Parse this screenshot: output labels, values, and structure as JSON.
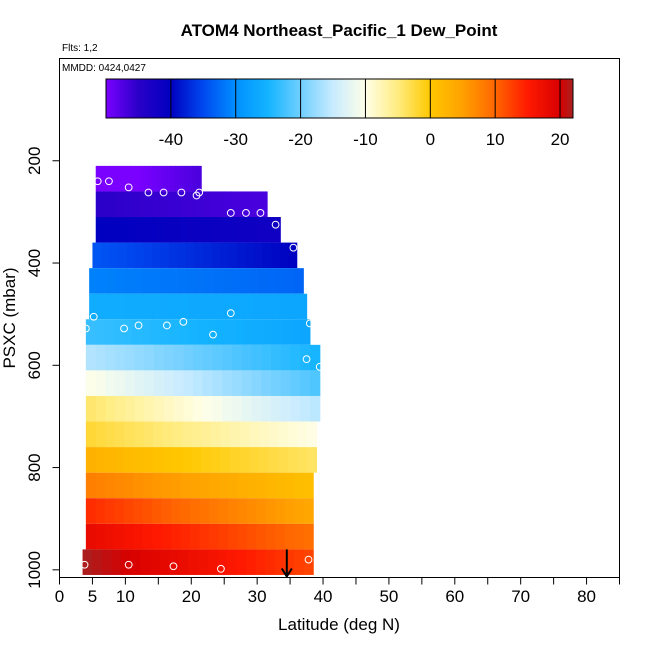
{
  "title": "ATOM4 Northeast_Pacific_1 Dew_Point",
  "subtitle_flights": "Flts: 1,2",
  "subtitle_dates": "MMDD: 0424,0427",
  "chart_data": {
    "type": "heatmap",
    "title": "ATOM4 Northeast_Pacific_1 Dew_Point",
    "xlabel": "Latitude (deg N)",
    "ylabel": "PSXC (mbar)",
    "xlim": [
      0,
      85
    ],
    "ylim": [
      1015,
      0
    ],
    "y_reversed": true,
    "x_ticks": [
      0,
      5,
      10,
      20,
      30,
      40,
      50,
      60,
      70,
      80
    ],
    "x_minor_ticks": [
      15,
      25,
      35,
      45,
      55,
      65,
      75,
      85
    ],
    "y_ticks": [
      200,
      400,
      600,
      800,
      1000
    ],
    "colorbar": {
      "min": -50,
      "max": 22,
      "ticks": [
        -40,
        -30,
        -20,
        -10,
        0,
        10,
        20
      ],
      "tick_lines": [
        -40,
        -30,
        -20,
        -10,
        0,
        10,
        20
      ],
      "stops": [
        {
          "v": -50,
          "c": "#7a00ff"
        },
        {
          "v": -45,
          "c": "#2a00c8"
        },
        {
          "v": -40,
          "c": "#0000c0"
        },
        {
          "v": -35,
          "c": "#0048f0"
        },
        {
          "v": -30,
          "c": "#0090ff"
        },
        {
          "v": -25,
          "c": "#14b4ff"
        },
        {
          "v": -20,
          "c": "#70cfff"
        },
        {
          "v": -15,
          "c": "#c8ebff"
        },
        {
          "v": -10,
          "c": "#ffffe8"
        },
        {
          "v": -5,
          "c": "#ffec80"
        },
        {
          "v": 0,
          "c": "#ffc800"
        },
        {
          "v": 5,
          "c": "#ffa000"
        },
        {
          "v": 10,
          "c": "#ff6600"
        },
        {
          "v": 15,
          "c": "#ff1a00"
        },
        {
          "v": 20,
          "c": "#d80000"
        },
        {
          "v": 22,
          "c": "#a82020"
        }
      ]
    },
    "rows": [
      {
        "p_top": 210,
        "p_bot": 260,
        "lat_start": 5.5,
        "lat_end": 21.5,
        "v_south": -52,
        "v_north": -47
      },
      {
        "p_top": 260,
        "p_bot": 310,
        "lat_start": 5.5,
        "lat_end": 31.5,
        "v_south": -45,
        "v_north": -47
      },
      {
        "p_top": 310,
        "p_bot": 360,
        "lat_start": 5.5,
        "lat_end": 33.5,
        "v_south": -40,
        "v_north": -42
      },
      {
        "p_top": 360,
        "p_bot": 410,
        "lat_start": 5,
        "lat_end": 36,
        "v_south": -34,
        "v_north": -40
      },
      {
        "p_top": 410,
        "p_bot": 460,
        "lat_start": 4.5,
        "lat_end": 37,
        "v_south": -31,
        "v_north": -33
      },
      {
        "p_top": 460,
        "p_bot": 510,
        "lat_start": 4.5,
        "lat_end": 37.5,
        "v_south": -26,
        "v_north": -27
      },
      {
        "p_top": 510,
        "p_bot": 560,
        "lat_start": 4,
        "lat_end": 38,
        "v_south": -23,
        "v_north": -27
      },
      {
        "p_top": 560,
        "p_bot": 610,
        "lat_start": 4,
        "lat_end": 39.5,
        "v_south": -16,
        "v_north": -25
      },
      {
        "p_top": 610,
        "p_bot": 660,
        "lat_start": 4,
        "lat_end": 39.5,
        "v_south": -10,
        "v_north": -22
      },
      {
        "p_top": 660,
        "p_bot": 710,
        "lat_start": 4,
        "lat_end": 39.5,
        "v_south": -4,
        "v_north": -16
      },
      {
        "p_top": 710,
        "p_bot": 760,
        "lat_start": 4,
        "lat_end": 39,
        "v_south": -2,
        "v_north": -10
      },
      {
        "p_top": 760,
        "p_bot": 810,
        "lat_start": 4,
        "lat_end": 39,
        "v_south": 3,
        "v_north": -4
      },
      {
        "p_top": 810,
        "p_bot": 860,
        "lat_start": 4,
        "lat_end": 38.5,
        "v_south": 8,
        "v_north": 1
      },
      {
        "p_top": 860,
        "p_bot": 910,
        "lat_start": 4,
        "lat_end": 38.5,
        "v_south": 14,
        "v_north": 4
      },
      {
        "p_top": 910,
        "p_bot": 960,
        "lat_start": 4,
        "lat_end": 38.5,
        "v_south": 18,
        "v_north": 9
      },
      {
        "p_top": 960,
        "p_bot": 1010,
        "lat_start": 3.5,
        "lat_end": 38.5,
        "v_south": 22,
        "v_north": 12
      }
    ],
    "sample_points": [
      {
        "lat": 5.8,
        "p": 240
      },
      {
        "lat": 7.5,
        "p": 240
      },
      {
        "lat": 10.5,
        "p": 252
      },
      {
        "lat": 13.5,
        "p": 262
      },
      {
        "lat": 15.8,
        "p": 262
      },
      {
        "lat": 18.5,
        "p": 262
      },
      {
        "lat": 20.8,
        "p": 268
      },
      {
        "lat": 21.2,
        "p": 262
      },
      {
        "lat": 26,
        "p": 302
      },
      {
        "lat": 28.3,
        "p": 302
      },
      {
        "lat": 30.5,
        "p": 302
      },
      {
        "lat": 32.8,
        "p": 325
      },
      {
        "lat": 35.5,
        "p": 370
      },
      {
        "lat": 5.2,
        "p": 505
      },
      {
        "lat": 4,
        "p": 528
      },
      {
        "lat": 9.8,
        "p": 528
      },
      {
        "lat": 12,
        "p": 522
      },
      {
        "lat": 16.3,
        "p": 522
      },
      {
        "lat": 18.8,
        "p": 515
      },
      {
        "lat": 23.3,
        "p": 540
      },
      {
        "lat": 26,
        "p": 498
      },
      {
        "lat": 38,
        "p": 518
      },
      {
        "lat": 37.5,
        "p": 588
      },
      {
        "lat": 39.5,
        "p": 603
      },
      {
        "lat": 3.8,
        "p": 990
      },
      {
        "lat": 10.5,
        "p": 990
      },
      {
        "lat": 17.3,
        "p": 993
      },
      {
        "lat": 24.5,
        "p": 998
      },
      {
        "lat": 37.8,
        "p": 980
      }
    ],
    "marker_arrow": {
      "lat": 34.5,
      "p_from": 960,
      "p_to": 1015
    }
  }
}
